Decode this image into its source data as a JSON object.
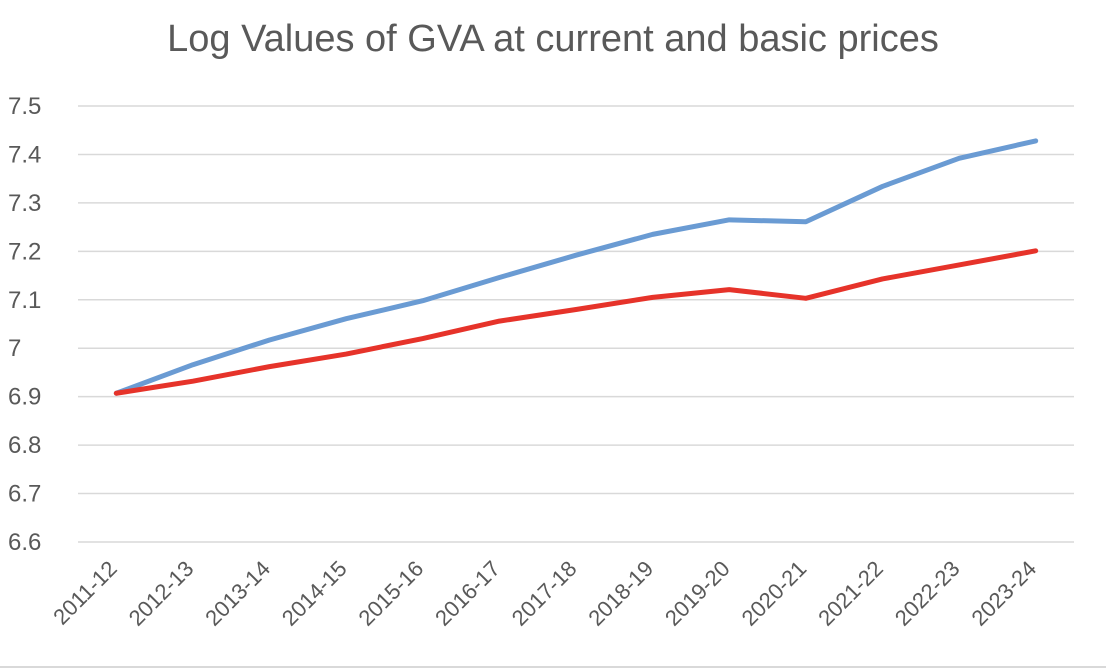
{
  "chart_data": {
    "type": "line",
    "title": "Log Values of GVA at current and basic prices",
    "xlabel": "",
    "ylabel": "",
    "categories": [
      "2011-12",
      "2012-13",
      "2013-14",
      "2014-15",
      "2015-16",
      "2016-17",
      "2017-18",
      "2018-19",
      "2019-20",
      "2020-21",
      "2021-22",
      "2022-23",
      "2023-24"
    ],
    "ylim": [
      6.6,
      7.5
    ],
    "yticks": [
      "6.6",
      "6.7",
      "6.8",
      "6.9",
      "7",
      "7.1",
      "7.2",
      "7.3",
      "7.4",
      "7.5"
    ],
    "grid": true,
    "legend": "none",
    "series": [
      {
        "color": "#6a9bd3",
        "values": [
          6.907,
          6.966,
          7.017,
          7.061,
          7.098,
          7.146,
          7.192,
          7.235,
          7.265,
          7.261,
          7.334,
          7.392,
          7.428
        ]
      },
      {
        "color": "#e6332a",
        "values": [
          6.907,
          6.932,
          6.962,
          6.988,
          7.02,
          7.056,
          7.08,
          7.105,
          7.121,
          7.103,
          7.143,
          7.172,
          7.201
        ]
      }
    ]
  }
}
